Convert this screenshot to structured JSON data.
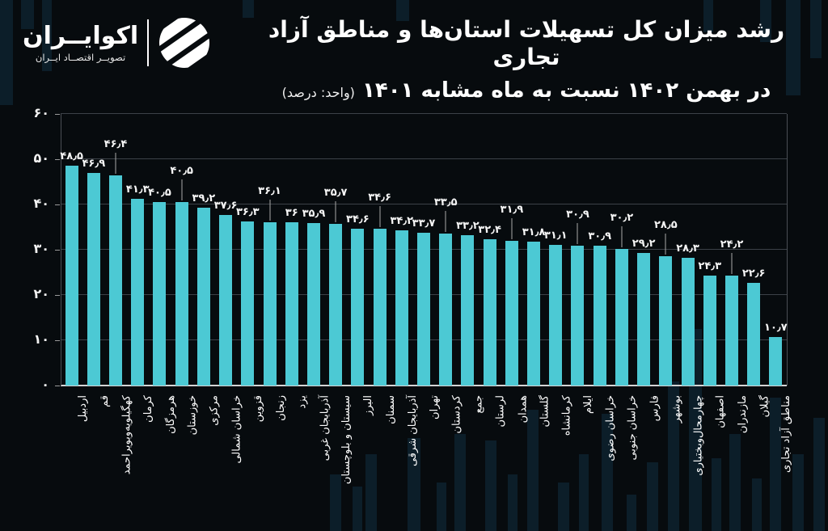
{
  "header": {
    "brand_name": "اکوایــران",
    "brand_tagline": "تصویــر اقتصــاد ایــران",
    "title_line1": "رشد میزان کل تسهیلات استان‌ها و مناطق آزاد تجاری",
    "title_line2": "در بهمن ۱۴۰۲ نسبت به ماه مشابه ۱۴۰۱",
    "title_unit": "(واحد: درصد)"
  },
  "chart_data": {
    "type": "bar",
    "title": "رشد میزان کل تسهیلات استان‌ها و مناطق آزاد تجاری در بهمن ۱۴۰۲ نسبت به ماه مشابه ۱۴۰۱",
    "unit_label": "(واحد: درصد)",
    "xlabel": "",
    "ylabel": "",
    "ylim": [
      0,
      60
    ],
    "yticks": [
      0,
      10,
      20,
      30,
      40,
      50,
      60
    ],
    "ytick_labels": [
      "۰",
      "۱۰",
      "۲۰",
      "۳۰",
      "۴۰",
      "۵۰",
      "۶۰"
    ],
    "grid": true,
    "legend": "none",
    "bar_color": "#4cc9d4",
    "background_color": "#070b0e",
    "categories": [
      "اردبیل",
      "قم",
      "کهگیلویه‌وبویراحمد",
      "کرمان",
      "هرمزگان",
      "خوزستان",
      "مرکزی",
      "خراسان شمالی",
      "قزوین",
      "زنجان",
      "یزد",
      "آذربایجان غربی",
      "سیستان و بلوچستان",
      "البرز",
      "سمنان",
      "آذربایجان شرقی",
      "تهران",
      "کردستان",
      "جمع",
      "لرستان",
      "همدان",
      "گلستان",
      "کرمانشاه",
      "ایلام",
      "خراسان رضوی",
      "خراسان جنوبی",
      "فارس",
      "بوشهر",
      "چهارمحال‌وبختیاری",
      "اصفهان",
      "مازندران",
      "گیلان",
      "مناطق آزاد تجاری"
    ],
    "values": [
      48.5,
      46.9,
      46.4,
      41.3,
      40.5,
      40.5,
      39.2,
      37.6,
      36.3,
      36.1,
      36,
      35.9,
      35.7,
      34.6,
      34.6,
      34.2,
      33.7,
      33.5,
      33.2,
      32.4,
      31.9,
      31.8,
      31.1,
      30.9,
      30.9,
      30.2,
      29.2,
      28.5,
      28.3,
      24.3,
      24.2,
      22.6,
      10.7
    ],
    "value_labels": [
      "۴۸٫۵",
      "۴۶٫۹",
      "۴۶٫۴",
      "۴۱٫۳",
      "۴۰٫۵",
      "۴۰٫۵",
      "۳۹٫۲",
      "۳۷٫۶",
      "۳۶٫۳",
      "۳۶٫۱",
      "۳۶",
      "۳۵٫۹",
      "۳۵٫۷",
      "۳۴٫۶",
      "۳۴٫۶",
      "۳۴٫۲",
      "۳۳٫۷",
      "۳۳٫۵",
      "۳۳٫۲",
      "۳۲٫۴",
      "۳۱٫۹",
      "۳۱٫۸",
      "۳۱٫۱",
      "۳۰٫۹",
      "۳۰٫۹",
      "۳۰٫۲",
      "۲۹٫۲",
      "۲۸٫۵",
      "۲۸٫۳",
      "۲۴٫۳",
      "۲۴٫۲",
      "۲۲٫۶",
      "۱۰٫۷"
    ],
    "raised_label_indexes": [
      2,
      5,
      9,
      12,
      14,
      17,
      20,
      23,
      25,
      27,
      30
    ]
  }
}
